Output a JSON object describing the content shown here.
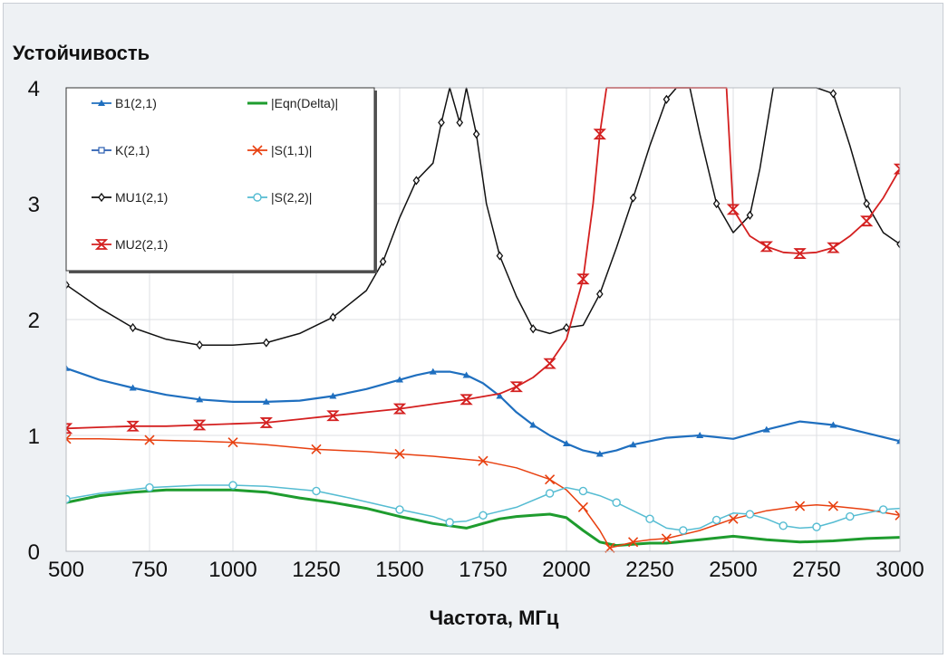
{
  "chart_data": {
    "type": "line",
    "title": "Устойчивость",
    "xlabel": "Частота, МГц",
    "ylabel": "",
    "xlim": [
      500,
      3000
    ],
    "ylim": [
      0,
      4
    ],
    "x_ticks": [
      "500",
      "750",
      "1000",
      "1250",
      "1500",
      "1750",
      "2000",
      "2250",
      "2500",
      "2750",
      "3000"
    ],
    "y_ticks": [
      "0",
      "1",
      "2",
      "3",
      "4"
    ],
    "grid": true,
    "legend_position": "top-left",
    "series": [
      {
        "name": "B1(2,1)",
        "color": "#1f6fbf",
        "marker": "triangle",
        "x": [
          500,
          600,
          700,
          800,
          900,
          1000,
          1100,
          1200,
          1300,
          1400,
          1500,
          1550,
          1600,
          1650,
          1700,
          1750,
          1800,
          1850,
          1900,
          1950,
          2000,
          2050,
          2100,
          2150,
          2200,
          2300,
          2400,
          2500,
          2600,
          2700,
          2800,
          2900,
          3000
        ],
        "y": [
          1.58,
          1.48,
          1.41,
          1.35,
          1.31,
          1.29,
          1.29,
          1.3,
          1.34,
          1.4,
          1.48,
          1.52,
          1.55,
          1.55,
          1.52,
          1.45,
          1.34,
          1.2,
          1.09,
          1.0,
          0.93,
          0.87,
          0.84,
          0.87,
          0.92,
          0.98,
          1.0,
          0.97,
          1.05,
          1.12,
          1.09,
          1.02,
          0.95
        ]
      },
      {
        "name": "K(2,1)",
        "color": "#2a5db0",
        "marker": "square",
        "x": [],
        "y": []
      },
      {
        "name": "MU1(2,1)",
        "color": "#111111",
        "marker": "diamond",
        "x": [
          500,
          600,
          700,
          800,
          900,
          1000,
          1100,
          1200,
          1300,
          1400,
          1450,
          1500,
          1550,
          1600,
          1625,
          1650,
          1680,
          1700,
          1730,
          1760,
          1800,
          1850,
          1900,
          1950,
          2000,
          2050,
          2100,
          2150,
          2200,
          2250,
          2300,
          2330,
          2370,
          2400,
          2450,
          2500,
          2550,
          2580,
          2620,
          2660,
          2700,
          2750,
          2800,
          2850,
          2900,
          2950,
          3000
        ],
        "y": [
          2.3,
          2.1,
          1.93,
          1.83,
          1.78,
          1.78,
          1.8,
          1.88,
          2.02,
          2.25,
          2.5,
          2.88,
          3.2,
          3.35,
          3.7,
          4.0,
          3.7,
          4.0,
          3.6,
          3.0,
          2.55,
          2.2,
          1.92,
          1.88,
          1.93,
          1.95,
          2.22,
          2.62,
          3.05,
          3.5,
          3.9,
          4.0,
          4.0,
          3.6,
          3.0,
          2.75,
          2.9,
          3.3,
          4.0,
          4.0,
          4.0,
          4.0,
          3.95,
          3.5,
          3.0,
          2.75,
          2.65
        ]
      },
      {
        "name": "MU2(2,1)",
        "color": "#d42020",
        "marker": "hourglass",
        "x": [
          500,
          600,
          700,
          800,
          900,
          1000,
          1100,
          1200,
          1300,
          1400,
          1500,
          1600,
          1700,
          1800,
          1850,
          1900,
          1950,
          2000,
          2050,
          2080,
          2100,
          2120,
          2140,
          2480,
          2500,
          2550,
          2600,
          2650,
          2700,
          2750,
          2800,
          2850,
          2900,
          2950,
          3000
        ],
        "y": [
          1.06,
          1.07,
          1.08,
          1.08,
          1.09,
          1.1,
          1.11,
          1.14,
          1.17,
          1.2,
          1.23,
          1.27,
          1.31,
          1.36,
          1.42,
          1.5,
          1.62,
          1.83,
          2.35,
          3.0,
          3.6,
          4.0,
          4.0,
          4.0,
          2.95,
          2.72,
          2.63,
          2.58,
          2.57,
          2.58,
          2.62,
          2.72,
          2.85,
          3.05,
          3.3
        ]
      },
      {
        "name": "|Eqn(Delta)|",
        "color": "#1e9c2e",
        "marker": "none",
        "x": [
          500,
          600,
          700,
          800,
          900,
          1000,
          1100,
          1200,
          1300,
          1400,
          1500,
          1550,
          1600,
          1650,
          1700,
          1750,
          1800,
          1850,
          1900,
          1950,
          2000,
          2050,
          2100,
          2150,
          2200,
          2250,
          2300,
          2400,
          2500,
          2600,
          2700,
          2800,
          2900,
          3000
        ],
        "y": [
          0.42,
          0.48,
          0.51,
          0.53,
          0.53,
          0.53,
          0.51,
          0.46,
          0.42,
          0.37,
          0.3,
          0.27,
          0.24,
          0.22,
          0.2,
          0.24,
          0.28,
          0.3,
          0.31,
          0.32,
          0.29,
          0.18,
          0.08,
          0.05,
          0.06,
          0.07,
          0.07,
          0.1,
          0.13,
          0.1,
          0.08,
          0.09,
          0.11,
          0.12
        ]
      },
      {
        "name": "|S(1,1)|",
        "color": "#e84010",
        "marker": "x",
        "x": [
          500,
          600,
          750,
          900,
          1000,
          1100,
          1250,
          1400,
          1500,
          1600,
          1750,
          1850,
          1950,
          2000,
          2050,
          2100,
          2130,
          2160,
          2200,
          2250,
          2300,
          2400,
          2500,
          2600,
          2700,
          2750,
          2800,
          2900,
          3000
        ],
        "y": [
          0.97,
          0.97,
          0.96,
          0.95,
          0.94,
          0.92,
          0.88,
          0.86,
          0.84,
          0.82,
          0.78,
          0.72,
          0.62,
          0.53,
          0.38,
          0.18,
          0.03,
          0.05,
          0.08,
          0.1,
          0.11,
          0.18,
          0.28,
          0.35,
          0.39,
          0.4,
          0.39,
          0.36,
          0.31
        ]
      },
      {
        "name": "|S(2,2)|",
        "color": "#55bcd2",
        "marker": "circle",
        "x": [
          500,
          600,
          750,
          900,
          1000,
          1100,
          1250,
          1350,
          1500,
          1600,
          1650,
          1700,
          1750,
          1850,
          1950,
          2000,
          2050,
          2100,
          2150,
          2200,
          2250,
          2300,
          2350,
          2400,
          2450,
          2500,
          2550,
          2600,
          2650,
          2700,
          2750,
          2800,
          2850,
          2900,
          2950,
          3000
        ],
        "y": [
          0.45,
          0.5,
          0.55,
          0.57,
          0.57,
          0.56,
          0.52,
          0.46,
          0.36,
          0.3,
          0.25,
          0.26,
          0.31,
          0.38,
          0.5,
          0.55,
          0.52,
          0.48,
          0.42,
          0.35,
          0.28,
          0.2,
          0.18,
          0.2,
          0.27,
          0.33,
          0.32,
          0.28,
          0.22,
          0.2,
          0.21,
          0.25,
          0.3,
          0.33,
          0.36,
          0.37
        ]
      }
    ]
  }
}
